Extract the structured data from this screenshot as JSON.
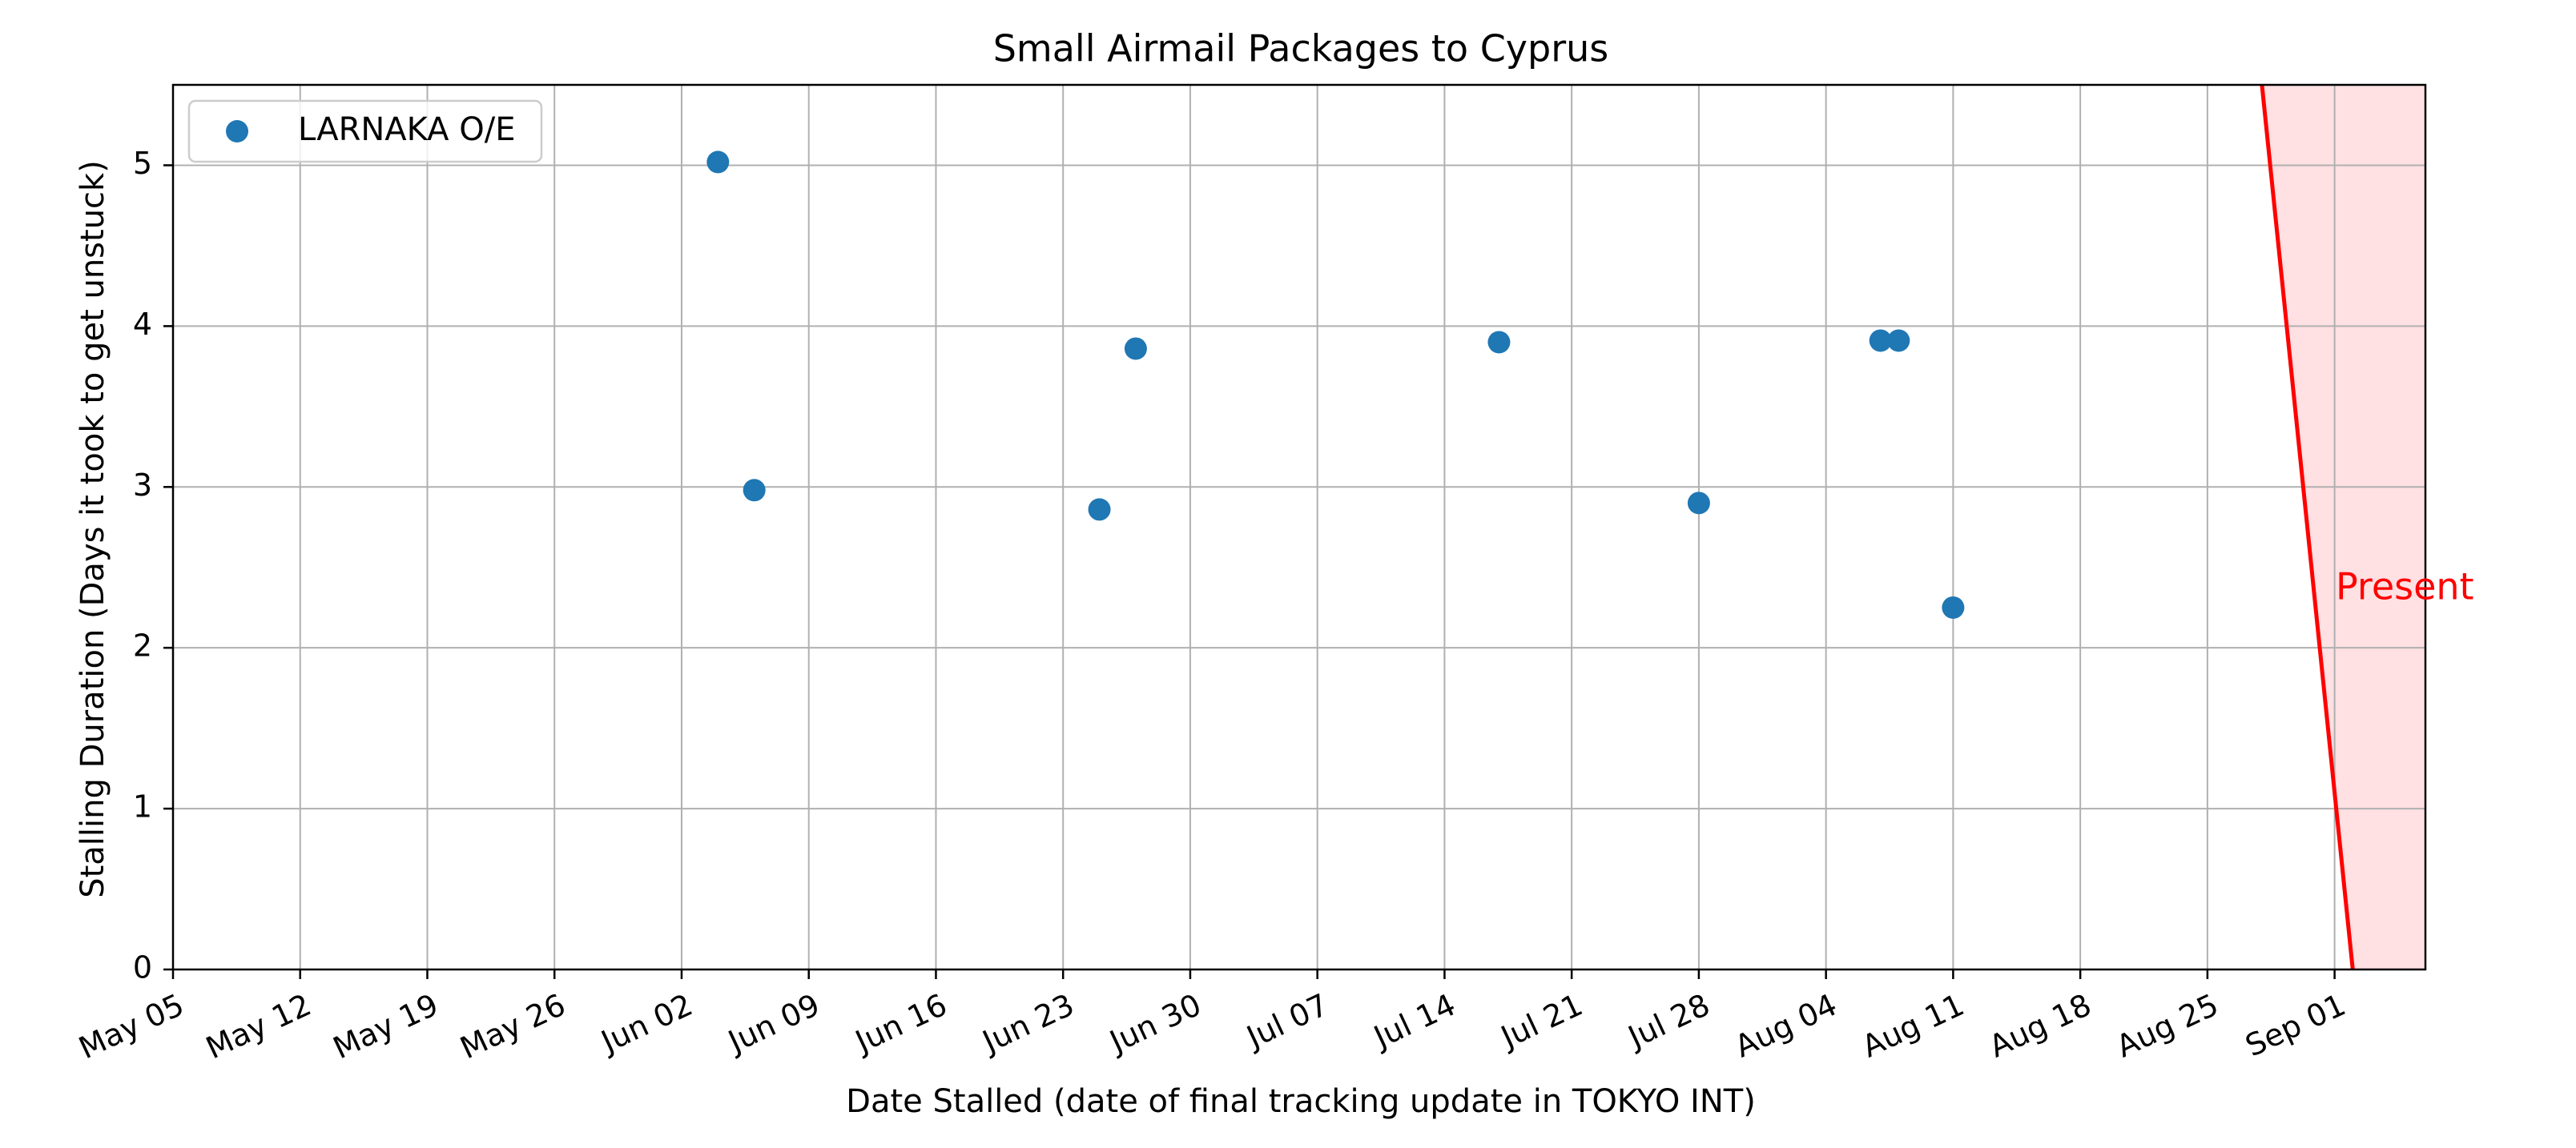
{
  "chart_data": {
    "type": "scatter",
    "title": "Small Airmail Packages to Cyprus",
    "xlabel": "Date Stalled (date of final tracking update in TOKYO INT)",
    "ylabel": "Stalling Duration (Days it took to get unstuck)",
    "x_axis_type": "date",
    "xlim": [
      "2024-05-05",
      "2024-09-06"
    ],
    "ylim": [
      0,
      5.5
    ],
    "x_tick_dates": [
      "2024-05-05",
      "2024-05-12",
      "2024-05-19",
      "2024-05-26",
      "2024-06-02",
      "2024-06-09",
      "2024-06-16",
      "2024-06-23",
      "2024-06-30",
      "2024-07-07",
      "2024-07-14",
      "2024-07-21",
      "2024-07-28",
      "2024-08-04",
      "2024-08-11",
      "2024-08-18",
      "2024-08-25",
      "2024-09-01"
    ],
    "x_tick_labels": [
      "May 05",
      "May 12",
      "May 19",
      "May 26",
      "Jun 02",
      "Jun 09",
      "Jun 16",
      "Jun 23",
      "Jun 30",
      "Jul 07",
      "Jul 14",
      "Jul 21",
      "Jul 28",
      "Aug 04",
      "Aug 11",
      "Aug 18",
      "Aug 25",
      "Sep 01"
    ],
    "y_ticks": [
      0,
      1,
      2,
      3,
      4,
      5
    ],
    "y_tick_labels": [
      "0",
      "1",
      "2",
      "3",
      "4",
      "5"
    ],
    "grid": true,
    "legend_position": "top-left",
    "series": [
      {
        "name": "LARNAKA O/E",
        "color": "#1f77b4",
        "points": [
          {
            "x": "2024-06-04",
            "y": 5.02
          },
          {
            "x": "2024-06-06",
            "y": 2.98
          },
          {
            "x": "2024-06-25",
            "y": 2.86
          },
          {
            "x": "2024-06-27",
            "y": 3.86
          },
          {
            "x": "2024-07-17",
            "y": 3.9
          },
          {
            "x": "2024-07-28",
            "y": 2.9
          },
          {
            "x": "2024-08-07",
            "y": 3.91
          },
          {
            "x": "2024-08-08",
            "y": 3.91
          },
          {
            "x": "2024-08-11",
            "y": 2.25
          }
        ]
      }
    ],
    "present_marker": {
      "label": "Present",
      "color": "#ff0000",
      "shade_color": "#ffe0e3",
      "line_top": {
        "x": "2024-08-28",
        "y": 5.5
      },
      "line_bottom": {
        "x": "2024-09-02",
        "y": 0
      }
    }
  }
}
